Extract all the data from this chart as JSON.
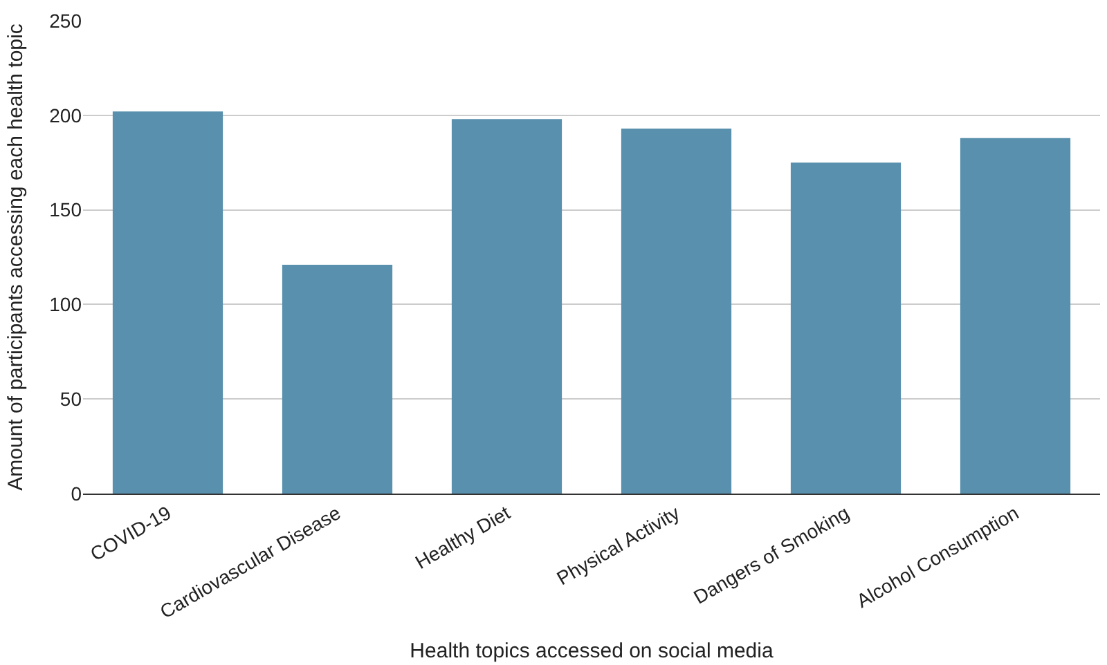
{
  "chart_data": {
    "type": "bar",
    "xlabel": "Health topics accessed on social media",
    "ylabel": "Amount of participants accessing each health topic",
    "categories": [
      "COVID-19",
      "Cardiovascular Disease",
      "Healthy Diet",
      "Physical Activity",
      "Dangers of Smoking",
      "Alcohol Consumption"
    ],
    "values": [
      202,
      121,
      198,
      193,
      175,
      188
    ],
    "color": "#5890ad",
    "ylim": [
      0,
      250
    ],
    "yticks": [
      0,
      50,
      100,
      150,
      200,
      250
    ],
    "grid": "y",
    "legend": false
  }
}
